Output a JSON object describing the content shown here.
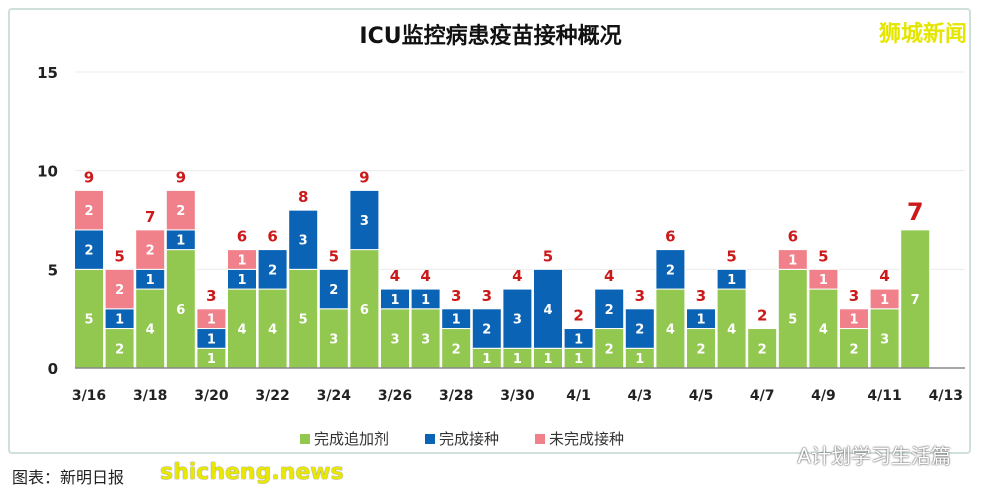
{
  "brand": "狮城新闻",
  "watermark_site": "shicheng.news",
  "watermark_account": "A计划学习生活篇",
  "caption": "图表：新明日报",
  "colors": {
    "booster": "#92c850",
    "vaccinated": "#0a63b4",
    "unvaccinated": "#f0818b",
    "total_label": "#cc1a1a"
  },
  "chart_data": {
    "type": "bar",
    "stacked": true,
    "title": "ICU监控病患疫苗接种概况",
    "ylim": [
      0,
      15
    ],
    "yticks": [
      0,
      5,
      10,
      15
    ],
    "grid": true,
    "legend_position": "bottom",
    "categories": [
      "3/16",
      "3/17",
      "3/18",
      "3/19",
      "3/20",
      "3/21",
      "3/22",
      "3/23",
      "3/24",
      "3/25",
      "3/26",
      "3/27",
      "3/28",
      "3/29",
      "3/30",
      "3/31",
      "4/1",
      "4/2",
      "4/3",
      "4/4",
      "4/5",
      "4/6",
      "4/7",
      "4/8",
      "4/9",
      "4/10",
      "4/11",
      "4/12",
      "4/13"
    ],
    "xtick_labels": [
      "3/16",
      "3/18",
      "3/20",
      "3/22",
      "3/24",
      "3/26",
      "3/28",
      "3/30",
      "4/1",
      "4/3",
      "4/5",
      "4/7",
      "4/9",
      "4/11",
      "4/13"
    ],
    "series": [
      {
        "name": "完成追加剂",
        "values": [
          5,
          2,
          4,
          6,
          1,
          4,
          4,
          5,
          3,
          6,
          3,
          3,
          2,
          1,
          1,
          1,
          1,
          2,
          1,
          4,
          2,
          4,
          2,
          5,
          4,
          2,
          3,
          7,
          0
        ]
      },
      {
        "name": "完成接种",
        "values": [
          2,
          1,
          1,
          1,
          1,
          1,
          2,
          3,
          2,
          3,
          1,
          1,
          1,
          2,
          3,
          4,
          1,
          2,
          2,
          2,
          1,
          1,
          0,
          0,
          0,
          0,
          0,
          0,
          0
        ]
      },
      {
        "name": "未完成接种",
        "values": [
          2,
          2,
          2,
          2,
          1,
          1,
          0,
          0,
          0,
          0,
          0,
          0,
          0,
          0,
          0,
          0,
          0,
          0,
          0,
          0,
          0,
          0,
          0,
          1,
          1,
          1,
          1,
          0,
          0
        ]
      }
    ],
    "totals": [
      9,
      5,
      7,
      9,
      3,
      6,
      6,
      8,
      5,
      9,
      4,
      4,
      3,
      3,
      4,
      5,
      2,
      4,
      3,
      6,
      3,
      5,
      2,
      6,
      5,
      3,
      4,
      7,
      null
    ]
  }
}
